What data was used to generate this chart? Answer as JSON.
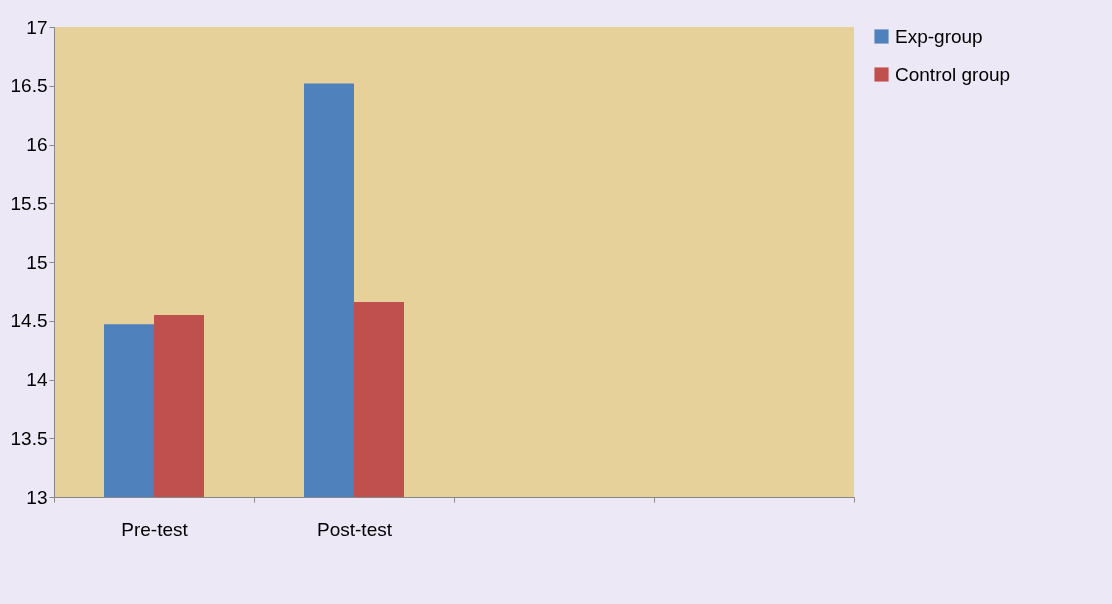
{
  "chart_data": {
    "type": "bar",
    "categories": [
      "Pre-test",
      "Post-test",
      null,
      null
    ],
    "series": [
      {
        "name": "Exp-group",
        "color": "#4f81bd",
        "values": [
          14.47,
          16.52,
          null,
          null
        ]
      },
      {
        "name": "Control group",
        "color": "#c0504d",
        "values": [
          14.55,
          14.66,
          null,
          null
        ]
      }
    ],
    "ylim": [
      13,
      17
    ],
    "yticks": [
      13,
      13.5,
      14,
      14.5,
      15,
      15.5,
      16,
      16.5,
      17
    ],
    "grid": false,
    "legend": "right"
  }
}
